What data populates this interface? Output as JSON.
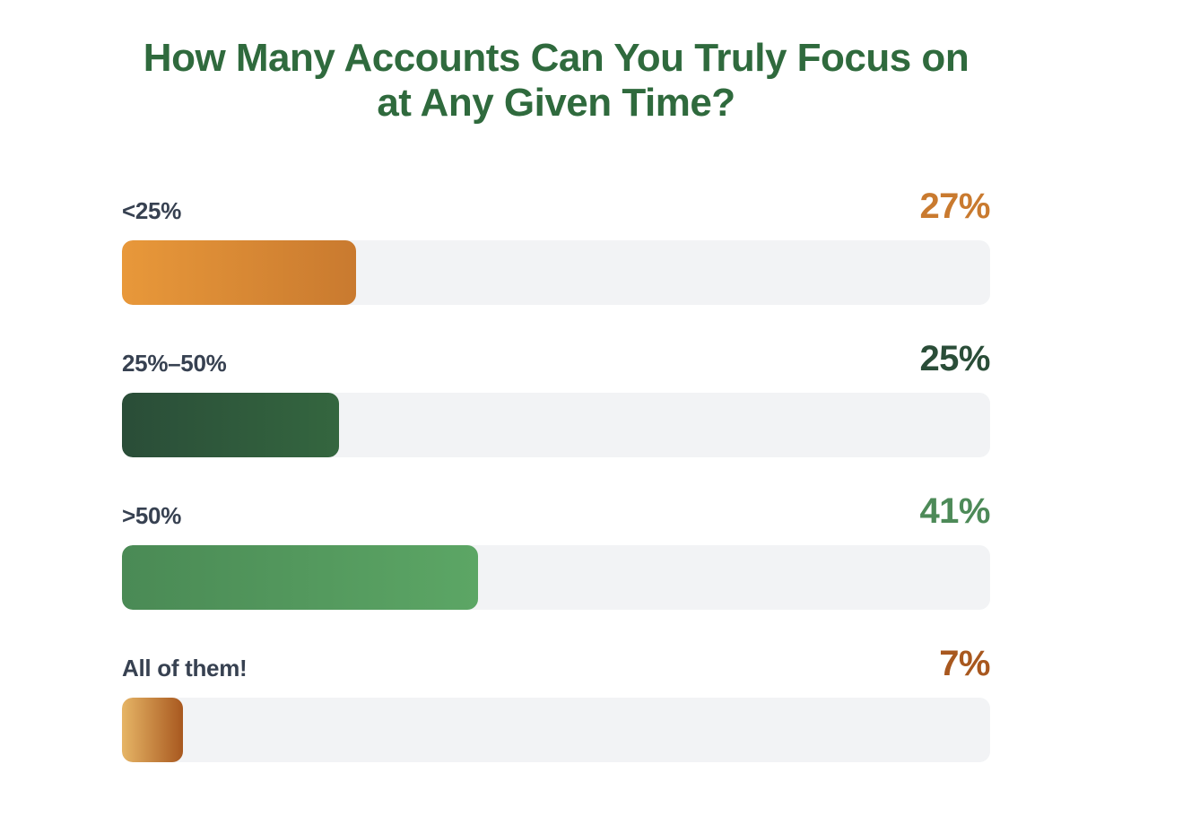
{
  "chart_data": {
    "type": "bar",
    "orientation": "horizontal",
    "title": "How Many Accounts Can You Truly Focus on at Any Given Time?",
    "xlim": [
      0,
      100
    ],
    "categories": [
      "<25%",
      "25%–50%",
      ">50%",
      "All of them!"
    ],
    "values": [
      27,
      25,
      41,
      7
    ],
    "value_labels": [
      "27%",
      "25%",
      "41%",
      "7%"
    ],
    "colors": [
      {
        "from": "#e8983a",
        "to": "#c97a2f",
        "text": "#c97a2f"
      },
      {
        "from": "#2a4d38",
        "to": "#34663f",
        "text": "#2a4d38"
      },
      {
        "from": "#4a8a55",
        "to": "#5ca665",
        "text": "#4d8a58"
      },
      {
        "from": "#e6b566",
        "to": "#a8581f",
        "text": "#a8581f"
      }
    ],
    "track_color": "#f2f3f5"
  }
}
